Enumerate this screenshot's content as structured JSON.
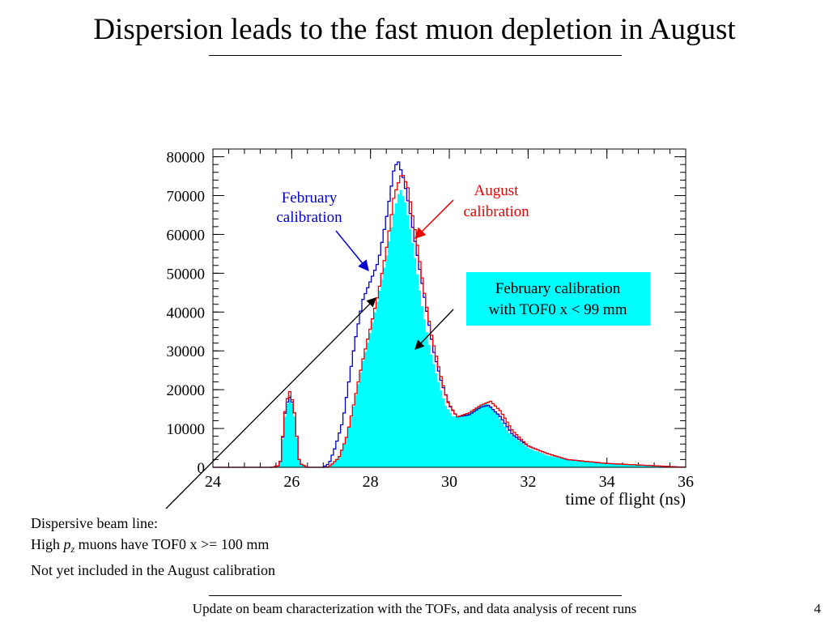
{
  "slide": {
    "title": "Dispersion leads to the fast muon depletion in August",
    "footer": "Update on beam characterization with the TOFs, and data analysis of recent runs",
    "page_number": "4",
    "note": {
      "line1": "Dispersive beam line:",
      "line2_prefix": "High ",
      "line2_var": "p",
      "line2_sub": "z",
      "line2_suffix": " muons have TOF0 x >= 100 mm",
      "line3": "Not yet included in the August calibration"
    }
  },
  "chart_data": {
    "type": "line",
    "xlabel": "time of flight (ns)",
    "ylabel": "",
    "xlim": [
      24,
      36
    ],
    "ylim": [
      0,
      82000
    ],
    "x_ticks": [
      24,
      26,
      28,
      30,
      32,
      34,
      36
    ],
    "y_ticks": [
      0,
      10000,
      20000,
      30000,
      40000,
      50000,
      60000,
      70000,
      80000
    ],
    "series": [
      {
        "name": "February calibration with TOF0 x < 99 mm",
        "color": "#00ffff",
        "style": "filled-histogram",
        "points": [
          [
            24,
            0
          ],
          [
            25.5,
            0
          ],
          [
            25.7,
            500
          ],
          [
            25.85,
            15000
          ],
          [
            25.95,
            18500
          ],
          [
            26.05,
            15000
          ],
          [
            26.2,
            1000
          ],
          [
            26.4,
            0
          ],
          [
            26.9,
            0
          ],
          [
            27,
            600
          ],
          [
            27.2,
            2500
          ],
          [
            27.4,
            8000
          ],
          [
            27.6,
            17000
          ],
          [
            27.8,
            27000
          ],
          [
            28,
            35000
          ],
          [
            28.2,
            44000
          ],
          [
            28.4,
            54000
          ],
          [
            28.6,
            66000
          ],
          [
            28.75,
            72000
          ],
          [
            28.9,
            68000
          ],
          [
            29.1,
            56000
          ],
          [
            29.3,
            42000
          ],
          [
            29.5,
            31000
          ],
          [
            29.7,
            23000
          ],
          [
            29.9,
            16000
          ],
          [
            30.1,
            13000
          ],
          [
            30.4,
            13500
          ],
          [
            30.7,
            15500
          ],
          [
            30.95,
            16500
          ],
          [
            31.2,
            14000
          ],
          [
            31.5,
            9000
          ],
          [
            32,
            5000
          ],
          [
            32.5,
            3000
          ],
          [
            33,
            2000
          ],
          [
            34,
            1000
          ],
          [
            35,
            500
          ],
          [
            36,
            0
          ]
        ]
      },
      {
        "name": "February calibration",
        "color": "#0000cc",
        "style": "step-line",
        "points": [
          [
            24,
            0
          ],
          [
            25.5,
            0
          ],
          [
            25.7,
            500
          ],
          [
            25.85,
            16000
          ],
          [
            25.95,
            18000
          ],
          [
            26.05,
            16000
          ],
          [
            26.2,
            1000
          ],
          [
            26.4,
            0
          ],
          [
            26.8,
            0
          ],
          [
            26.95,
            1000
          ],
          [
            27.1,
            5000
          ],
          [
            27.3,
            12000
          ],
          [
            27.45,
            22000
          ],
          [
            27.6,
            32000
          ],
          [
            27.8,
            43000
          ],
          [
            28,
            48000
          ],
          [
            28.2,
            53000
          ],
          [
            28.4,
            64000
          ],
          [
            28.6,
            77000
          ],
          [
            28.7,
            79000
          ],
          [
            28.85,
            74000
          ],
          [
            29,
            66000
          ],
          [
            29.2,
            54000
          ],
          [
            29.4,
            42000
          ],
          [
            29.6,
            30000
          ],
          [
            29.8,
            22000
          ],
          [
            30,
            16000
          ],
          [
            30.2,
            13000
          ],
          [
            30.5,
            13500
          ],
          [
            30.8,
            15500
          ],
          [
            31,
            16000
          ],
          [
            31.3,
            13000
          ],
          [
            31.6,
            8500
          ],
          [
            32,
            5500
          ],
          [
            32.5,
            3500
          ],
          [
            33,
            2000
          ],
          [
            34,
            1000
          ],
          [
            35,
            500
          ],
          [
            36,
            0
          ]
        ]
      },
      {
        "name": "August calibration",
        "color": "#ee0000",
        "style": "step-line",
        "points": [
          [
            24,
            0
          ],
          [
            25.5,
            0
          ],
          [
            25.7,
            500
          ],
          [
            25.85,
            16500
          ],
          [
            25.95,
            19500
          ],
          [
            26.05,
            16000
          ],
          [
            26.2,
            1000
          ],
          [
            26.4,
            0
          ],
          [
            26.9,
            0
          ],
          [
            27,
            600
          ],
          [
            27.2,
            2500
          ],
          [
            27.4,
            8000
          ],
          [
            27.6,
            17500
          ],
          [
            27.8,
            27500
          ],
          [
            28,
            36000
          ],
          [
            28.2,
            45000
          ],
          [
            28.4,
            56000
          ],
          [
            28.6,
            70000
          ],
          [
            28.8,
            76000
          ],
          [
            28.95,
            72000
          ],
          [
            29.15,
            60000
          ],
          [
            29.35,
            46000
          ],
          [
            29.55,
            34000
          ],
          [
            29.75,
            25000
          ],
          [
            29.95,
            17000
          ],
          [
            30.2,
            13000
          ],
          [
            30.5,
            14000
          ],
          [
            30.8,
            16000
          ],
          [
            31.05,
            17000
          ],
          [
            31.3,
            14500
          ],
          [
            31.6,
            9500
          ],
          [
            32,
            5500
          ],
          [
            32.5,
            3500
          ],
          [
            33,
            2000
          ],
          [
            34,
            1000
          ],
          [
            35,
            500
          ],
          [
            36,
            0
          ]
        ]
      }
    ],
    "annotations": [
      {
        "text": "February\ncalibration",
        "color": "#0000cc"
      },
      {
        "text": "August\ncalibration",
        "color": "#ee0000"
      },
      {
        "text": "February calibration\nwith TOF0 x < 99 mm",
        "color": "#000000",
        "background": "#00ffff"
      }
    ]
  }
}
